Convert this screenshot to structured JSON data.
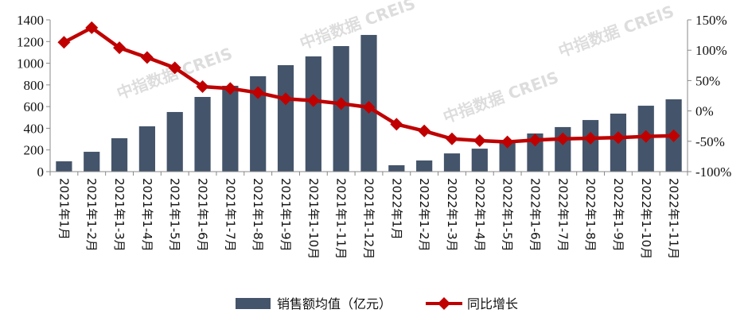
{
  "chart_data": {
    "type": "bar+line",
    "categories": [
      "2021年1月",
      "2021年1-2月",
      "2021年1-3月",
      "2021年1-4月",
      "2021年1-5月",
      "2021年1-6月",
      "2021年1-7月",
      "2021年1-8月",
      "2021年1-9月",
      "2021年1-10月",
      "2021年1-11月",
      "2021年1-12月",
      "2022年1月",
      "2022年1-2月",
      "2022年1-3月",
      "2022年1-4月",
      "2022年1-5月",
      "2022年1-6月",
      "2022年1-7月",
      "2022年1-8月",
      "2022年1-9月",
      "2022年1-10月",
      "2022年1-11月"
    ],
    "series": [
      {
        "name": "销售额均值（亿元）",
        "type": "bar",
        "axis": "left",
        "color": "#44546a",
        "values": [
          95,
          183,
          308,
          418,
          550,
          689,
          792,
          880,
          982,
          1063,
          1158,
          1261,
          59,
          103,
          168,
          212,
          280,
          352,
          411,
          476,
          535,
          608,
          667
        ]
      },
      {
        "name": "同比增长",
        "type": "line",
        "axis": "right",
        "color": "#c00000",
        "unit": "%",
        "values": [
          113,
          137,
          104,
          88,
          71,
          40,
          37,
          30,
          20,
          17,
          12,
          6,
          -22,
          -33,
          -46,
          -49,
          -51,
          -48,
          -46,
          -45,
          -44,
          -42,
          -41
        ]
      }
    ],
    "left_axis": {
      "ylim": [
        0,
        1400
      ],
      "ticks": [
        "0",
        "200",
        "400",
        "600",
        "800",
        "1000",
        "1200",
        "1400"
      ]
    },
    "right_axis": {
      "ylim": [
        -100,
        150
      ],
      "ticks": [
        "-100%",
        "-50%",
        "0%",
        "50%",
        "100%",
        "150%"
      ]
    },
    "grid": false,
    "legend": "bottom"
  },
  "watermark": "中指数据  CREIS"
}
